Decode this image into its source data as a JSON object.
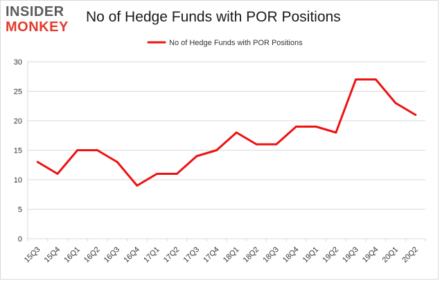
{
  "brand": {
    "line1": "INSIDER",
    "line2": "MONKEY"
  },
  "colors": {
    "series": "#ee1111",
    "logo_gray": "#5a5a5a",
    "logo_red": "#e23a2c",
    "grid": "#d9d9d9"
  },
  "chart_data": {
    "type": "line",
    "title": "No of Hedge Funds with POR Positions",
    "xlabel": "",
    "ylabel": "",
    "ylim": [
      0,
      30
    ],
    "yticks": [
      0,
      5,
      10,
      15,
      20,
      25,
      30
    ],
    "grid": true,
    "legend": "top-center",
    "categories": [
      "15Q3",
      "15Q4",
      "16Q1",
      "16Q2",
      "16Q3",
      "16Q4",
      "17Q1",
      "17Q2",
      "17Q3",
      "17Q4",
      "18Q1",
      "18Q2",
      "18Q3",
      "18Q4",
      "19Q1",
      "19Q2",
      "19Q3",
      "19Q4",
      "20Q1",
      "20Q2"
    ],
    "series": [
      {
        "name": "No of Hedge Funds with POR Positions",
        "values": [
          13,
          11,
          15,
          15,
          13,
          9,
          11,
          11,
          14,
          15,
          18,
          16,
          16,
          19,
          19,
          18,
          27,
          27,
          23,
          21
        ]
      }
    ]
  }
}
